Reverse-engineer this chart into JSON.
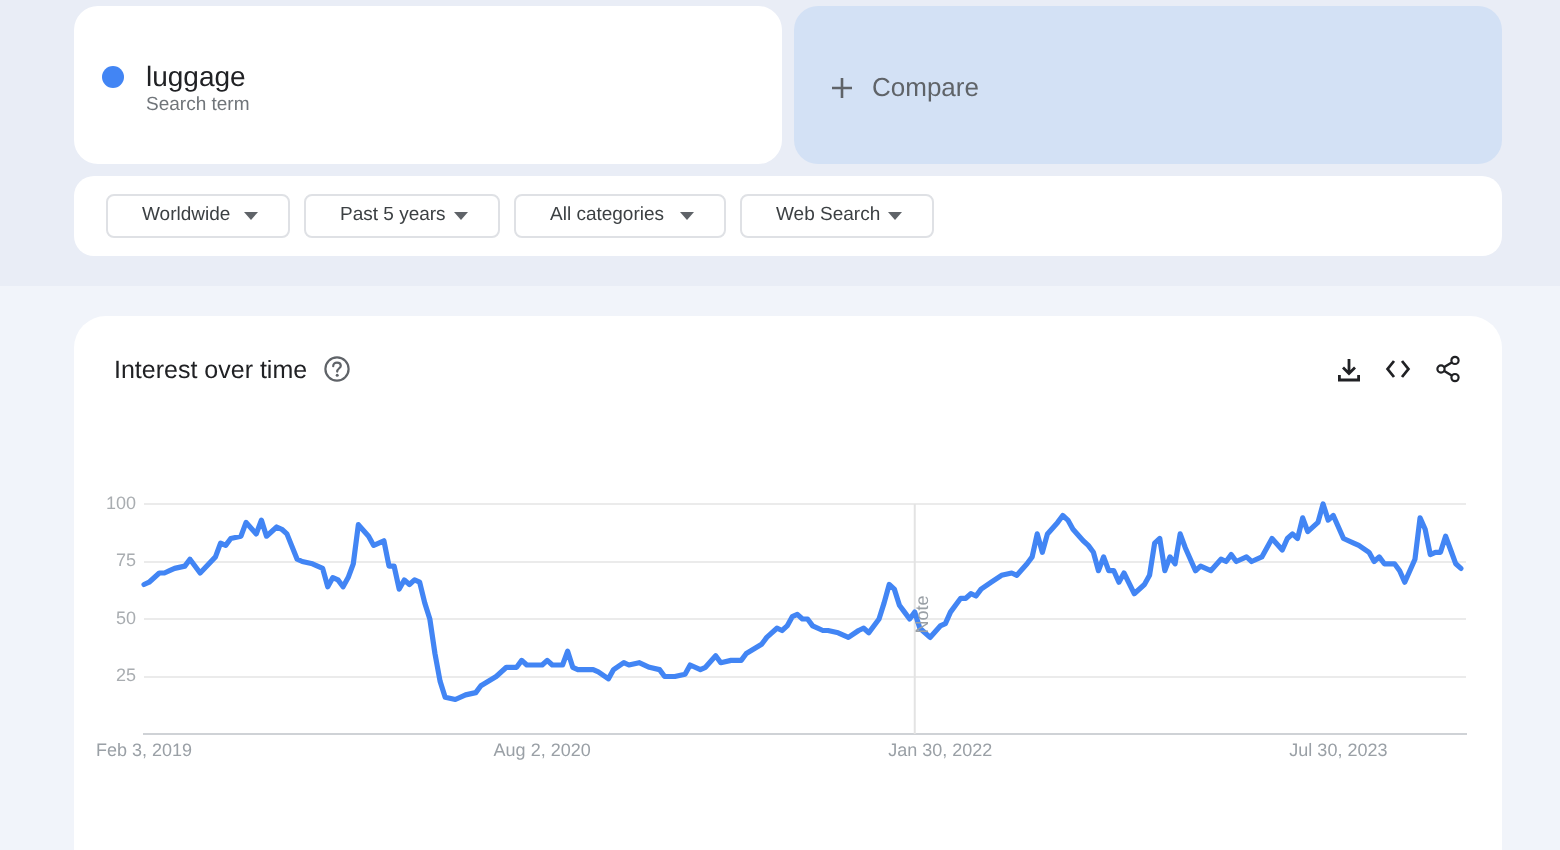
{
  "chart_data": {
    "type": "line",
    "title": "Interest over time",
    "x": [
      "2019-02-03",
      "2019-02-10",
      "2019-02-24",
      "2019-03-03",
      "2019-03-10",
      "2019-03-17",
      "2019-03-31",
      "2019-04-07",
      "2019-04-21",
      "2019-05-12",
      "2019-05-19",
      "2019-05-26",
      "2019-06-02",
      "2019-06-16",
      "2019-06-23",
      "2019-07-07",
      "2019-07-14",
      "2019-07-21",
      "2019-08-04",
      "2019-08-11",
      "2019-08-18",
      "2019-09-01",
      "2019-09-08",
      "2019-09-22",
      "2019-09-29",
      "2019-10-06",
      "2019-10-13",
      "2019-10-20",
      "2019-10-27",
      "2019-11-03",
      "2019-11-10",
      "2019-11-17",
      "2019-11-24",
      "2019-12-08",
      "2019-12-15",
      "2019-12-22",
      "2019-12-29",
      "2020-01-05",
      "2020-01-12",
      "2020-01-19",
      "2020-01-26",
      "2020-02-02",
      "2020-02-09",
      "2020-02-16",
      "2020-02-23",
      "2020-03-01",
      "2020-03-08",
      "2020-03-15",
      "2020-03-22",
      "2020-04-05",
      "2020-04-19",
      "2020-05-03",
      "2020-05-10",
      "2020-05-31",
      "2020-06-14",
      "2020-06-28",
      "2020-07-05",
      "2020-07-12",
      "2020-08-02",
      "2020-08-09",
      "2020-08-16",
      "2020-08-30",
      "2020-09-06",
      "2020-09-13",
      "2020-09-20",
      "2020-10-11",
      "2020-10-18",
      "2020-11-01",
      "2020-11-08",
      "2020-11-22",
      "2020-11-29",
      "2020-12-13",
      "2020-12-27",
      "2021-01-10",
      "2021-01-17",
      "2021-01-31",
      "2021-02-14",
      "2021-02-21",
      "2021-03-07",
      "2021-03-14",
      "2021-03-28",
      "2021-04-04",
      "2021-04-18",
      "2021-05-02",
      "2021-05-09",
      "2021-05-30",
      "2021-06-06",
      "2021-06-20",
      "2021-06-27",
      "2021-07-04",
      "2021-07-11",
      "2021-07-18",
      "2021-07-25",
      "2021-08-01",
      "2021-08-08",
      "2021-08-22",
      "2021-08-29",
      "2021-09-12",
      "2021-09-26",
      "2021-10-10",
      "2021-10-17",
      "2021-10-24",
      "2021-11-07",
      "2021-11-14",
      "2021-11-21",
      "2021-11-28",
      "2021-12-05",
      "2021-12-12",
      "2021-12-19",
      "2021-12-26",
      "2022-01-02",
      "2022-01-16",
      "2022-01-30",
      "2022-02-06",
      "2022-02-13",
      "2022-02-27",
      "2022-03-06",
      "2022-03-13",
      "2022-03-20",
      "2022-03-27",
      "2022-04-10",
      "2022-04-24",
      "2022-05-08",
      "2022-05-15",
      "2022-05-29",
      "2022-06-05",
      "2022-06-12",
      "2022-06-19",
      "2022-06-26",
      "2022-07-10",
      "2022-07-17",
      "2022-07-24",
      "2022-07-31",
      "2022-08-14",
      "2022-08-21",
      "2022-08-28",
      "2022-09-04",
      "2022-09-11",
      "2022-09-18",
      "2022-09-25",
      "2022-10-02",
      "2022-10-09",
      "2022-10-23",
      "2022-11-06",
      "2022-11-13",
      "2022-11-20",
      "2022-11-27",
      "2022-12-04",
      "2022-12-11",
      "2022-12-18",
      "2022-12-25",
      "2023-01-01",
      "2023-01-15",
      "2023-01-22",
      "2023-02-05",
      "2023-02-19",
      "2023-02-26",
      "2023-03-05",
      "2023-03-12",
      "2023-03-26",
      "2023-04-02",
      "2023-04-16",
      "2023-04-30",
      "2023-05-14",
      "2023-05-21",
      "2023-05-28",
      "2023-06-04",
      "2023-06-11",
      "2023-06-18",
      "2023-07-02",
      "2023-07-09",
      "2023-07-16",
      "2023-07-23",
      "2023-08-06",
      "2023-08-20",
      "2023-08-27",
      "2023-09-10",
      "2023-09-17",
      "2023-09-24",
      "2023-10-01",
      "2023-10-15",
      "2023-10-22",
      "2023-10-29",
      "2023-11-12",
      "2023-11-19",
      "2023-11-26",
      "2023-12-03",
      "2023-12-10",
      "2023-12-17",
      "2023-12-24",
      "2023-12-31",
      "2024-01-07",
      "2024-01-14"
    ],
    "series": [
      {
        "name": "luggage",
        "color": "#4285f4",
        "values": [
          65,
          66,
          70,
          70,
          71,
          72,
          73,
          76,
          70,
          77,
          83,
          82,
          85,
          86,
          92,
          87,
          93,
          86,
          90,
          89,
          87,
          76,
          75,
          74,
          73,
          72,
          64,
          68,
          67,
          64,
          68,
          74,
          91,
          86,
          82,
          83,
          84,
          73,
          73,
          63,
          67,
          65,
          67,
          66,
          57,
          50,
          35,
          23,
          16,
          15,
          17,
          18,
          21,
          25,
          29,
          29,
          32,
          30,
          30,
          32,
          30,
          30,
          36,
          29,
          28,
          28,
          27,
          24,
          28,
          31,
          30,
          31,
          29,
          28,
          25,
          25,
          26,
          30,
          28,
          29,
          34,
          31,
          32,
          32,
          35,
          39,
          42,
          46,
          45,
          47,
          51,
          52,
          50,
          50,
          47,
          45,
          45,
          44,
          42,
          45,
          46,
          44,
          50,
          57,
          65,
          63,
          56,
          53,
          50,
          53,
          46,
          42,
          47,
          48,
          53,
          59,
          59,
          61,
          60,
          63,
          66,
          69,
          70,
          69,
          74,
          77,
          87,
          79,
          87,
          92,
          95,
          93,
          89,
          84,
          82,
          79,
          71,
          77,
          71,
          71,
          66,
          70,
          61,
          65,
          69,
          83,
          85,
          71,
          77,
          74,
          87,
          81,
          71,
          73,
          71,
          76,
          75,
          78,
          75,
          77,
          75,
          77,
          85,
          80,
          85,
          87,
          85,
          94,
          88,
          92,
          100,
          93,
          95,
          85,
          83,
          82,
          79,
          75,
          77,
          74,
          74,
          71,
          66,
          76,
          94,
          89,
          78,
          79,
          79,
          86,
          80,
          74,
          72
        ]
      }
    ],
    "xlim": [
      "2019-02-03",
      "2024-01-21"
    ],
    "ylim": [
      0,
      100
    ],
    "xticks": [
      {
        "value": "2019-02-03",
        "label": "Feb 3, 2019"
      },
      {
        "value": "2020-08-02",
        "label": "Aug 2, 2020"
      },
      {
        "value": "2022-01-30",
        "label": "Jan 30, 2022"
      },
      {
        "value": "2023-07-30",
        "label": "Jul 30, 2023"
      }
    ],
    "yticks": [
      25,
      50,
      75,
      100
    ],
    "grid": "y",
    "legend": "top left",
    "marker": "none",
    "line_style": "solid",
    "ref_lines": [
      {
        "axis": "x",
        "value": "2021-12-26",
        "label": "Note",
        "color": "#e3e3e3"
      }
    ],
    "annotations": [
      "Search term",
      "Compare",
      "Worldwide",
      "Past 5 years",
      "All categories",
      "Web Search"
    ]
  }
}
